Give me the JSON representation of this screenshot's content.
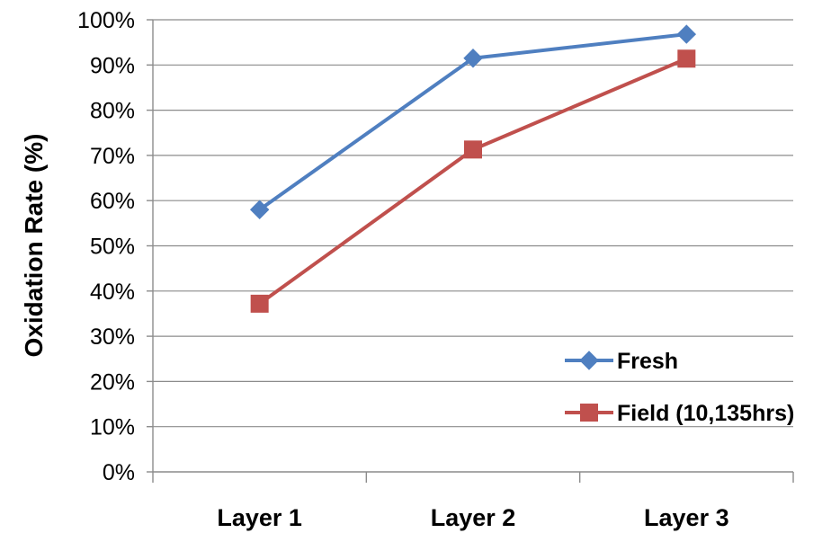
{
  "chart_data": {
    "type": "line",
    "title": "",
    "xlabel": "",
    "ylabel": "Oxidation Rate (%)",
    "categories": [
      "Layer 1",
      "Layer 2",
      "Layer 3"
    ],
    "ylim": [
      0,
      100
    ],
    "y_ticks": [
      "0%",
      "10%",
      "20%",
      "30%",
      "40%",
      "50%",
      "60%",
      "70%",
      "80%",
      "90%",
      "100%"
    ],
    "grid": true,
    "legend_position": "bottom-right",
    "series": [
      {
        "name": "Fresh",
        "values": [
          58,
          91.5,
          96.8
        ],
        "color": "#4f7fc0",
        "marker": "diamond"
      },
      {
        "name": "Field (10,135hrs)",
        "values": [
          37.2,
          71.3,
          91.4
        ],
        "color": "#c0504d",
        "marker": "square"
      }
    ]
  }
}
